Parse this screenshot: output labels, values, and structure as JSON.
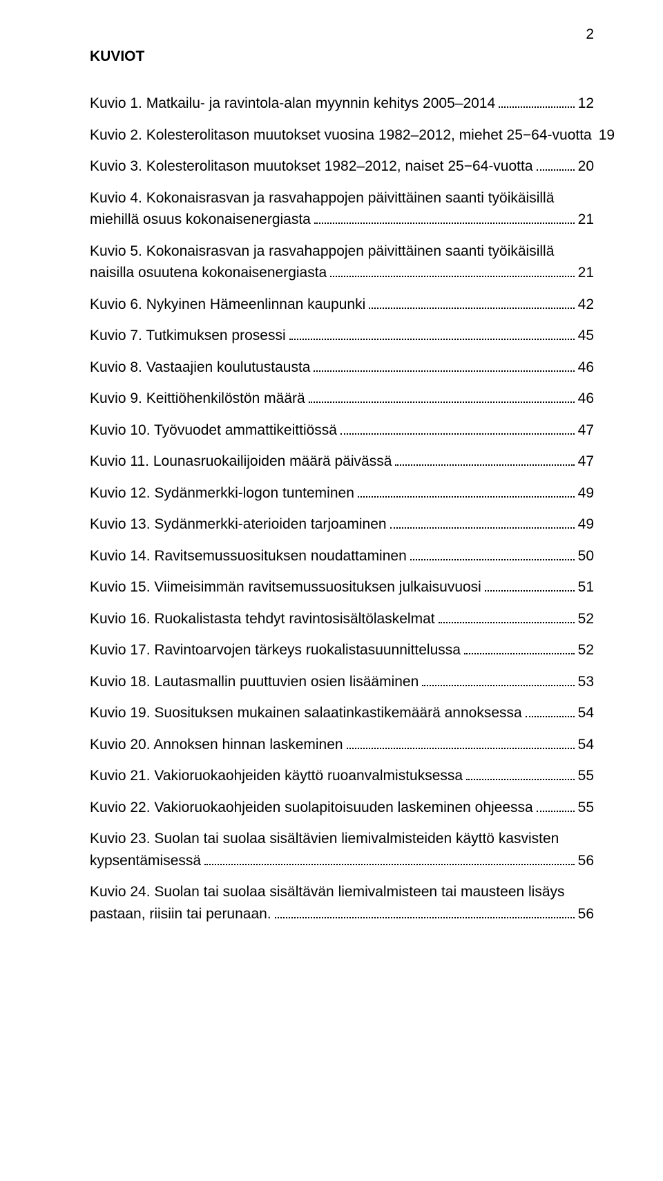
{
  "page_number": "2",
  "section_title": "KUVIOT",
  "entries": [
    {
      "label": "Kuvio 1. Matkailu- ja ravintola-alan myynnin kehitys 2005–2014",
      "page": "12"
    },
    {
      "label": "Kuvio 2. Kolesterolitason muutokset vuosina 1982–2012, miehet 25−64-vuotta",
      "page": "19"
    },
    {
      "label": "Kuvio 3. Kolesterolitason muutokset 1982–2012, naiset 25−64-vuotta",
      "page": "20"
    },
    {
      "label_line1": "Kuvio 4. Kokonaisrasvan ja rasvahappojen päivittäinen saanti työikäisillä",
      "label_line2": "miehillä osuus kokonaisenergiasta",
      "page": "21",
      "multiline": true
    },
    {
      "label_line1": "Kuvio 5. Kokonaisrasvan ja rasvahappojen päivittäinen saanti työikäisillä",
      "label_line2": "naisilla osuutena kokonaisenergiasta",
      "page": "21",
      "multiline": true
    },
    {
      "label": "Kuvio 6. Nykyinen Hämeenlinnan kaupunki",
      "page": "42"
    },
    {
      "label": "Kuvio 7. Tutkimuksen prosessi",
      "page": "45"
    },
    {
      "label": "Kuvio 8. Vastaajien koulutustausta",
      "page": "46"
    },
    {
      "label": "Kuvio 9. Keittiöhenkilöstön määrä",
      "page": "46"
    },
    {
      "label": "Kuvio 10. Työvuodet ammattikeittiössä",
      "page": "47"
    },
    {
      "label": "Kuvio 11. Lounasruokailijoiden määrä päivässä",
      "page": "47"
    },
    {
      "label": "Kuvio 12. Sydänmerkki-logon tunteminen",
      "page": "49"
    },
    {
      "label": "Kuvio 13. Sydänmerkki-aterioiden tarjoaminen",
      "page": "49"
    },
    {
      "label": "Kuvio 14. Ravitsemussuosituksen noudattaminen",
      "page": "50"
    },
    {
      "label": "Kuvio 15. Viimeisimmän ravitsemussuosituksen julkaisuvuosi",
      "page": "51"
    },
    {
      "label": "Kuvio 16. Ruokalistasta tehdyt ravintosisältölaskelmat",
      "page": "52"
    },
    {
      "label": "Kuvio 17. Ravintoarvojen tärkeys ruokalistasuunnittelussa",
      "page": "52"
    },
    {
      "label": "Kuvio 18. Lautasmallin puuttuvien osien lisääminen",
      "page": "53"
    },
    {
      "label": "Kuvio 19. Suosituksen mukainen salaatinkastikemäärä annoksessa",
      "page": "54"
    },
    {
      "label": "Kuvio 20. Annoksen hinnan laskeminen",
      "page": "54"
    },
    {
      "label": "Kuvio 21. Vakioruokaohjeiden käyttö ruoanvalmistuksessa",
      "page": "55"
    },
    {
      "label": "Kuvio 22. Vakioruokaohjeiden suolapitoisuuden laskeminen ohjeessa",
      "page": "55"
    },
    {
      "label_line1": "Kuvio 23. Suolan tai suolaa sisältävien liemivalmisteiden käyttö kasvisten",
      "label_line2": "kypsentämisessä",
      "page": "56",
      "multiline": true
    },
    {
      "label_line1": "Kuvio 24. Suolan tai suolaa sisältävän liemivalmisteen tai mausteen lisäys",
      "label_line2": "pastaan, riisiin tai perunaan.",
      "page": "56",
      "multiline": true
    }
  ]
}
